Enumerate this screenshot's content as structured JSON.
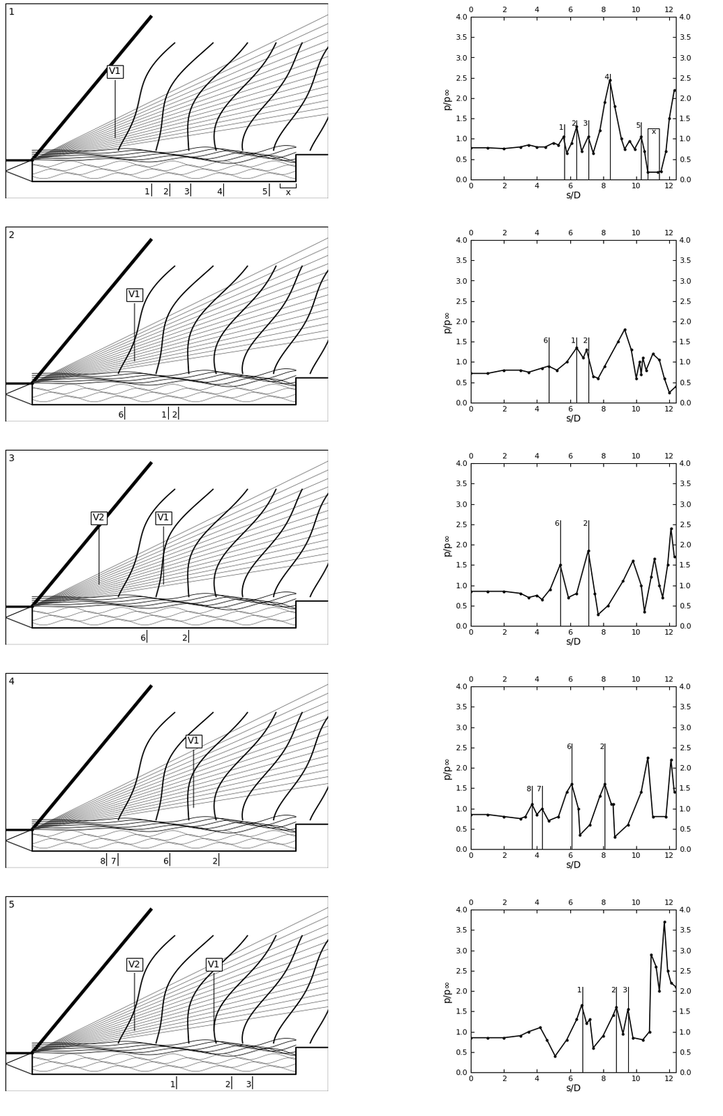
{
  "chart_data": [
    {
      "type": "line",
      "xlabel": "s/D",
      "ylabel": "p/p∞",
      "xlim": [
        0,
        12.4
      ],
      "ylim": [
        0,
        4
      ],
      "xticks": [
        0,
        2,
        4,
        6,
        8,
        10,
        12
      ],
      "yticks": [
        {
          "value": 0,
          "label": "0.0"
        },
        {
          "value": 0.5,
          "label": "0.5"
        },
        {
          "value": 1,
          "label": "1.0"
        },
        {
          "value": 1.5,
          "label": "1.5"
        },
        {
          "value": 2,
          "label": "2.0"
        },
        {
          "value": 2.5,
          "label": "2.5"
        },
        {
          "value": 3,
          "label": "3.0"
        },
        {
          "value": 3.5,
          "label": "3.5"
        },
        {
          "value": 4,
          "label": "4.0"
        }
      ],
      "color": "#000000",
      "marker": "o",
      "x": [
        0,
        1,
        2,
        3,
        3.5,
        4.0,
        4.5,
        5.0,
        5.3,
        5.6,
        5.8,
        6.1,
        6.4,
        6.7,
        7.1,
        7.4,
        7.8,
        8.1,
        8.4,
        8.7,
        9.1,
        9.3,
        9.6,
        9.9,
        10.3,
        10.5,
        10.7,
        11.3,
        11.5,
        11.8,
        12.0,
        12.3
      ],
      "values": [
        0.78,
        0.78,
        0.76,
        0.8,
        0.85,
        0.8,
        0.8,
        0.9,
        0.85,
        1.05,
        0.65,
        0.9,
        1.3,
        0.7,
        1.05,
        0.65,
        1.2,
        1.9,
        2.45,
        1.8,
        1.0,
        0.75,
        0.95,
        0.75,
        1.05,
        0.7,
        0.18,
        0.18,
        0.2,
        0.7,
        1.5,
        2.2
      ],
      "markers": [
        {
          "label": "1",
          "x": 5.65,
          "y": 1.35
        },
        {
          "label": "2",
          "x": 6.4,
          "y": 1.45
        },
        {
          "label": "3",
          "x": 7.1,
          "y": 1.45
        },
        {
          "label": "4",
          "x": 8.4,
          "y": 2.6
        },
        {
          "label": "5",
          "x": 10.3,
          "y": 1.4
        }
      ],
      "boxes": [
        {
          "label": "x",
          "x0": 10.7,
          "x1": 11.4,
          "y": 1.25
        }
      ]
    },
    {
      "type": "line",
      "xlabel": "s/D",
      "ylabel": "p/p∞",
      "xlim": [
        0,
        12.4
      ],
      "ylim": [
        0,
        4
      ],
      "xticks": [
        0,
        2,
        4,
        6,
        8,
        10,
        12
      ],
      "yticks": [
        {
          "value": 0,
          "label": "0.0"
        },
        {
          "value": 0.5,
          "label": "0.5"
        },
        {
          "value": 1,
          "label": "1.0"
        },
        {
          "value": 1.5,
          "label": "1.5"
        },
        {
          "value": 2,
          "label": "2.0"
        },
        {
          "value": 2.5,
          "label": "2.5"
        },
        {
          "value": 3,
          "label": "3.0"
        },
        {
          "value": 3.5,
          "label": "3.5"
        },
        {
          "value": 4,
          "label": "4.0"
        }
      ],
      "color": "#000000",
      "marker": "o",
      "x": [
        0,
        1,
        2,
        3,
        3.5,
        4.3,
        4.7,
        5.2,
        5.8,
        6.4,
        6.8,
        7.0,
        7.4,
        7.7,
        8.1,
        8.9,
        9.3,
        9.7,
        10.0,
        10.2,
        10.3,
        10.4,
        10.6,
        11.0,
        11.4,
        11.7,
        12.0,
        12.4
      ],
      "values": [
        0.72,
        0.72,
        0.8,
        0.8,
        0.75,
        0.85,
        0.9,
        0.8,
        1.0,
        1.35,
        1.1,
        1.3,
        0.65,
        0.6,
        0.9,
        1.5,
        1.8,
        1.3,
        0.6,
        1.0,
        0.7,
        1.1,
        0.8,
        1.2,
        1.05,
        0.6,
        0.25,
        0.4
      ],
      "markers": [
        {
          "label": "6",
          "x": 4.7,
          "y": 1.6
        },
        {
          "label": "1",
          "x": 6.4,
          "y": 1.6
        },
        {
          "label": "2",
          "x": 7.1,
          "y": 1.6
        }
      ],
      "boxes": []
    },
    {
      "type": "line",
      "xlabel": "s/D",
      "ylabel": "p/p∞",
      "xlim": [
        0,
        12.4
      ],
      "ylim": [
        0,
        4
      ],
      "xticks": [
        0,
        2,
        4,
        6,
        8,
        10,
        12
      ],
      "yticks": [
        {
          "value": 0,
          "label": "0.0"
        },
        {
          "value": 0.5,
          "label": "0.5"
        },
        {
          "value": 1,
          "label": "1.0"
        },
        {
          "value": 1.5,
          "label": "1.5"
        },
        {
          "value": 2,
          "label": "2.0"
        },
        {
          "value": 2.5,
          "label": "2.5"
        },
        {
          "value": 3,
          "label": "3.0"
        },
        {
          "value": 3.5,
          "label": "3.5"
        },
        {
          "value": 4,
          "label": "4.0"
        }
      ],
      "color": "#000000",
      "marker": "o",
      "x": [
        0,
        1,
        2,
        3,
        3.5,
        4.0,
        4.3,
        4.8,
        5.4,
        5.9,
        6.4,
        7.1,
        7.5,
        7.7,
        8.3,
        9.2,
        9.8,
        10.3,
        10.5,
        10.9,
        11.1,
        11.4,
        11.6,
        11.9,
        12.1,
        12.3
      ],
      "values": [
        0.85,
        0.85,
        0.85,
        0.8,
        0.7,
        0.75,
        0.65,
        0.9,
        1.5,
        0.7,
        0.8,
        1.85,
        0.8,
        0.28,
        0.5,
        1.1,
        1.6,
        1.0,
        0.35,
        1.2,
        1.65,
        1.0,
        0.7,
        1.5,
        2.4,
        1.7
      ],
      "markers": [
        {
          "label": "6",
          "x": 5.4,
          "y": 2.6
        },
        {
          "label": "2",
          "x": 7.1,
          "y": 2.6
        }
      ],
      "boxes": []
    },
    {
      "type": "line",
      "xlabel": "s/D",
      "ylabel": "p/p∞",
      "xlim": [
        0,
        12.4
      ],
      "ylim": [
        0,
        4
      ],
      "xticks": [
        0,
        2,
        4,
        6,
        8,
        10,
        12
      ],
      "yticks": [
        {
          "value": 0,
          "label": "0.0"
        },
        {
          "value": 0.5,
          "label": "0.5"
        },
        {
          "value": 1,
          "label": "1.0"
        },
        {
          "value": 1.5,
          "label": "1.5"
        },
        {
          "value": 2,
          "label": "2.0"
        },
        {
          "value": 2.5,
          "label": "2.5"
        },
        {
          "value": 3,
          "label": "3.0"
        },
        {
          "value": 3.5,
          "label": "3.5"
        },
        {
          "value": 4,
          "label": "4.0"
        }
      ],
      "color": "#000000",
      "marker": "o",
      "x": [
        0,
        1,
        2,
        3,
        3.3,
        3.7,
        4.0,
        4.3,
        4.7,
        5.3,
        5.8,
        6.1,
        6.5,
        6.6,
        7.2,
        7.8,
        8.1,
        8.5,
        8.6,
        8.7,
        9.5,
        10.3,
        10.7,
        11.0,
        11.8,
        12.1,
        12.3
      ],
      "values": [
        0.85,
        0.85,
        0.8,
        0.75,
        0.8,
        1.1,
        0.85,
        1.0,
        0.7,
        0.8,
        1.4,
        1.6,
        1.0,
        0.35,
        0.6,
        1.3,
        1.6,
        1.1,
        1.1,
        0.3,
        0.6,
        1.4,
        2.25,
        0.8,
        0.8,
        2.2,
        1.4
      ],
      "markers": [
        {
          "label": "8",
          "x": 3.7,
          "y": 1.55
        },
        {
          "label": "7",
          "x": 4.3,
          "y": 1.55
        },
        {
          "label": "6",
          "x": 6.1,
          "y": 2.6
        },
        {
          "label": "2",
          "x": 8.1,
          "y": 2.6
        }
      ],
      "boxes": []
    },
    {
      "type": "line",
      "xlabel": "s/D",
      "ylabel": "p/p∞",
      "xlim": [
        0,
        12.4
      ],
      "ylim": [
        0,
        4
      ],
      "xticks": [
        0,
        2,
        4,
        6,
        8,
        10,
        12
      ],
      "yticks": [
        {
          "value": 0,
          "label": "0.0"
        },
        {
          "value": 0.5,
          "label": "0.5"
        },
        {
          "value": 1,
          "label": "1.0"
        },
        {
          "value": 1.5,
          "label": "1.5"
        },
        {
          "value": 2,
          "label": "2.0"
        },
        {
          "value": 2.5,
          "label": "2.5"
        },
        {
          "value": 3,
          "label": "3.0"
        },
        {
          "value": 3.5,
          "label": "3.5"
        },
        {
          "value": 4,
          "label": "4.0"
        }
      ],
      "color": "#000000",
      "marker": "o",
      "x": [
        0,
        1,
        2,
        3,
        3.5,
        4.2,
        4.6,
        5.1,
        5.8,
        6.4,
        6.7,
        7.0,
        7.2,
        7.4,
        8.0,
        8.6,
        8.8,
        9.2,
        9.5,
        9.8,
        10.4,
        10.8,
        10.9,
        11.2,
        11.4,
        11.7,
        11.9,
        12.1,
        12.4
      ],
      "values": [
        0.85,
        0.85,
        0.85,
        0.9,
        1.0,
        1.1,
        0.8,
        0.4,
        0.8,
        1.3,
        1.65,
        1.2,
        1.3,
        0.6,
        0.9,
        1.4,
        1.6,
        0.95,
        1.55,
        0.85,
        0.8,
        1.0,
        2.9,
        2.6,
        2.0,
        3.7,
        2.5,
        2.2,
        2.1
      ],
      "markers": [
        {
          "label": "1",
          "x": 6.75,
          "y": 2.1
        },
        {
          "label": "2",
          "x": 8.8,
          "y": 2.1
        },
        {
          "label": "3",
          "x": 9.5,
          "y": 2.1
        }
      ],
      "boxes": []
    }
  ],
  "flow_fields": [
    {
      "panel": "1",
      "labels": [
        "V1"
      ],
      "markers": [
        "1",
        "2",
        "3",
        "4",
        "5",
        "x"
      ]
    },
    {
      "panel": "2",
      "labels": [
        "V1"
      ],
      "markers": [
        "6",
        "1",
        "2"
      ]
    },
    {
      "panel": "3",
      "labels": [
        "V2",
        "V1"
      ],
      "markers": [
        "6",
        "2"
      ]
    },
    {
      "panel": "4",
      "labels": [
        "V1"
      ],
      "markers": [
        "8",
        "7",
        "6",
        "2"
      ]
    },
    {
      "panel": "5",
      "labels": [
        "V2",
        "V1"
      ],
      "markers": [
        "1",
        "2",
        "3"
      ]
    }
  ]
}
